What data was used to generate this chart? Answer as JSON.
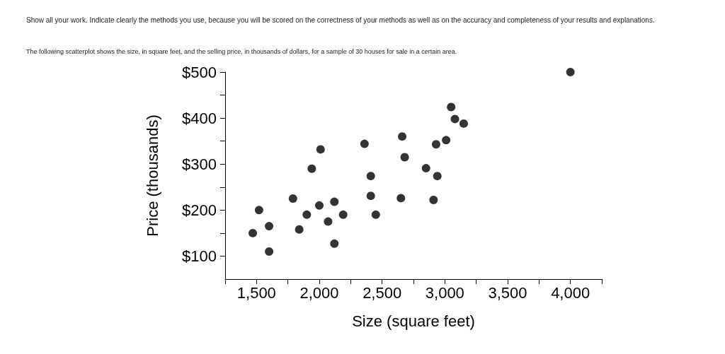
{
  "chart_data": {
    "type": "scatter",
    "title": "Show all your work. Indicate clearly the methods you use, because you will be scored on the correctness of your methods as well as on the accuracy and completeness of your results and explanations.",
    "subtitle": "The following scatterplot shows the size, in square feet, and the selling price, in thousands of dollars, for a sample of 30 houses for sale in a certain area.",
    "xlabel": "Size (square feet)",
    "ylabel": "Price (thousands)",
    "x": [
      1470,
      1520,
      1600,
      1600,
      1790,
      1840,
      1900,
      1940,
      2000,
      2010,
      2070,
      2120,
      2120,
      2190,
      2360,
      2410,
      2410,
      2450,
      2650,
      2660,
      2680,
      2850,
      2910,
      2930,
      2940,
      3010,
      3050,
      3080,
      3150,
      4000
    ],
    "series": [
      {
        "color": "#000000",
        "values": [
          150,
          200,
          165,
          110,
          225,
          158,
          190,
          290,
          210,
          332,
          175,
          218,
          127,
          190,
          344,
          274,
          231,
          190,
          226,
          360,
          315,
          291,
          222,
          343,
          274,
          352,
          424,
          398,
          388,
          500
        ]
      }
    ],
    "xlim": [
      1250,
      4250
    ],
    "xticks": [
      {
        "value": 1250,
        "label": null
      },
      {
        "value": 1500,
        "label": "1,500"
      },
      {
        "value": 1750,
        "label": null
      },
      {
        "value": 2000,
        "label": "2,000"
      },
      {
        "value": 2250,
        "label": null
      },
      {
        "value": 2500,
        "label": "2,500"
      },
      {
        "value": 2750,
        "label": null
      },
      {
        "value": 3000,
        "label": "3,000"
      },
      {
        "value": 3250,
        "label": null
      },
      {
        "value": 3500,
        "label": "3,500"
      },
      {
        "value": 3750,
        "label": null
      },
      {
        "value": 4000,
        "label": "4,000"
      },
      {
        "value": 4250,
        "label": null
      }
    ],
    "ylim": [
      50,
      500
    ],
    "yticks": [
      {
        "value": 100,
        "label": "$100"
      },
      {
        "value": 150,
        "label": null
      },
      {
        "value": 200,
        "label": "$200"
      },
      {
        "value": 250,
        "label": null
      },
      {
        "value": 300,
        "label": "$300"
      },
      {
        "value": 350,
        "label": null
      },
      {
        "value": 400,
        "label": "$400"
      },
      {
        "value": 450,
        "label": null
      },
      {
        "value": 500,
        "label": "$500"
      }
    ],
    "grid": false,
    "marker": "circle"
  }
}
